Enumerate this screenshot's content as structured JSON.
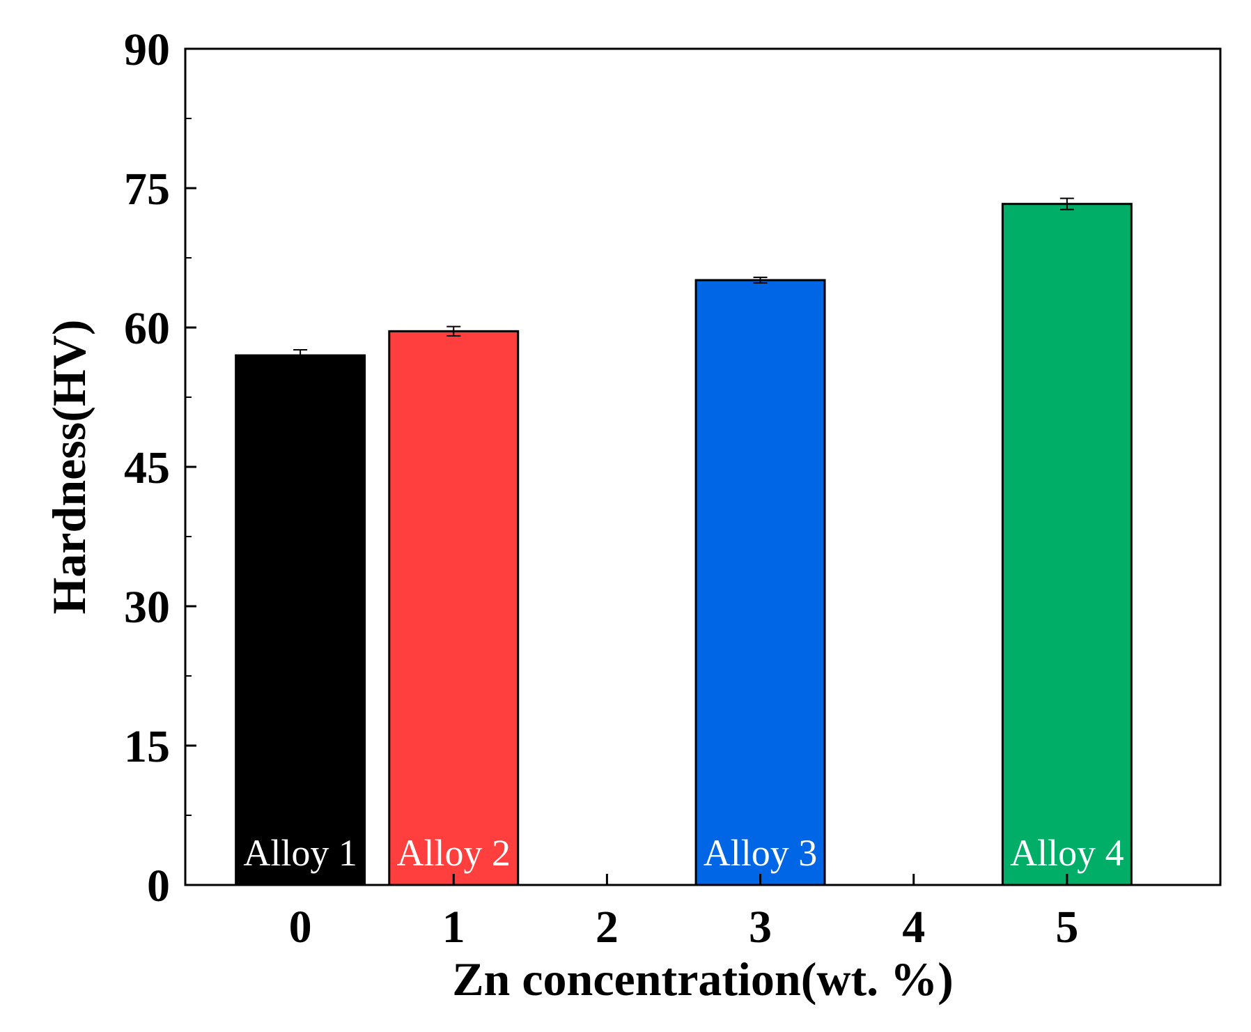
{
  "chart_data": {
    "type": "bar",
    "title": "",
    "xlabel": "Zn concentration(wt. %)",
    "ylabel": "Hardness(HV)",
    "xlim": [
      -0.75,
      6.0
    ],
    "ylim": [
      0,
      90
    ],
    "x_ticks": [
      0,
      1,
      2,
      3,
      4,
      5
    ],
    "y_ticks": [
      0,
      15,
      30,
      45,
      60,
      75,
      90
    ],
    "y_minor_step": 7.5,
    "bars": [
      {
        "name": "Alloy 1",
        "x": 0,
        "value": 57.0,
        "error": 0.6,
        "color": "#000000"
      },
      {
        "name": "Alloy 2",
        "x": 1,
        "value": 59.6,
        "error": 0.5,
        "color": "#ff3e3e"
      },
      {
        "name": "Alloy 3",
        "x": 3,
        "value": 65.1,
        "error": 0.3,
        "color": "#0066e6"
      },
      {
        "name": "Alloy 4",
        "x": 5,
        "value": 73.3,
        "error": 0.6,
        "color": "#00ae68"
      }
    ],
    "bar_width_units": 0.84,
    "grid": false,
    "legend": "none"
  }
}
